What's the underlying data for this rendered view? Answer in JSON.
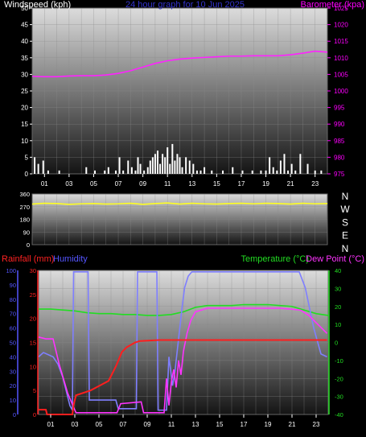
{
  "colors": {
    "wind": "#ffffff",
    "barometer": "#ff22ff",
    "direction": "#ffff22",
    "rain": "#ff1e1e",
    "humidity": "#7f7fff",
    "temperature": "#22dd22",
    "dewpoint": "#ff33ff",
    "axis_white": "#ffffff",
    "axis_magenta": "#ff00ff",
    "axis_red": "#ff2222",
    "axis_blue": "#5555ff",
    "axis_green": "#22dd22",
    "title": "#3333cc"
  },
  "header": {
    "title": "24 hour graph for 10 Jun 2025"
  },
  "chart_data": [
    {
      "type": "bar+line",
      "title": "24 hour graph for 10 Jun 2025",
      "ylabel_left": "Windspeed (kph)",
      "ylabel_right": "Barometer (kpa)",
      "ylim_left": [
        0,
        50
      ],
      "ylim_right": [
        975,
        1025
      ],
      "yticks_left": [
        "0",
        "5",
        "10",
        "15",
        "20",
        "25",
        "30",
        "35",
        "40",
        "45",
        "50"
      ],
      "yticks_right": [
        "975",
        "980",
        "985",
        "990",
        "995",
        "1000",
        "1005",
        "1010",
        "1015",
        "1020",
        "1025"
      ],
      "xticks": [
        "01",
        "03",
        "05",
        "07",
        "09",
        "11",
        "13",
        "15",
        "17",
        "19",
        "21",
        "23"
      ],
      "x_range_hours": [
        0,
        24
      ],
      "grid": true,
      "series": [
        {
          "kind": "bar",
          "axis": "left",
          "x": [
            0.2,
            0.5,
            0.9,
            1.3,
            2.2,
            4.4,
            5.1,
            5.9,
            6.2,
            6.8,
            7.1,
            7.4,
            7.8,
            8.1,
            8.4,
            8.6,
            8.8,
            9.1,
            9.4,
            9.6,
            9.8,
            10.0,
            10.2,
            10.4,
            10.6,
            10.8,
            11.0,
            11.2,
            11.4,
            11.6,
            11.8,
            12.0,
            12.2,
            12.5,
            12.8,
            13.1,
            13.4,
            13.7,
            14.0,
            14.6,
            15.5,
            16.3,
            17.1,
            17.9,
            18.6,
            19.0,
            19.3,
            19.6,
            19.9,
            20.2,
            20.5,
            20.8,
            21.1,
            21.4,
            21.8,
            22.4,
            23.0,
            23.5
          ],
          "values": [
            5,
            3,
            4,
            1,
            1,
            2,
            1,
            1,
            2,
            1,
            5,
            1,
            4,
            2,
            1,
            5,
            3,
            1,
            2,
            4,
            5,
            6,
            7,
            3,
            6,
            5,
            8,
            3,
            9,
            4,
            6,
            5,
            2,
            5,
            4,
            3,
            1,
            1,
            2,
            1,
            1,
            2,
            1,
            1,
            1,
            1,
            5,
            2,
            1,
            4,
            6,
            1,
            3,
            1,
            6,
            3,
            1,
            1
          ]
        },
        {
          "kind": "line",
          "axis": "right",
          "name": "barometer",
          "x": [
            0,
            1,
            2,
            3,
            4,
            5,
            6,
            7,
            8,
            9,
            10,
            11,
            12,
            13,
            14,
            15,
            16,
            17,
            18,
            19,
            20,
            21,
            22,
            23,
            24
          ],
          "values": [
            1004.4,
            1004.3,
            1004.3,
            1004.5,
            1004.6,
            1004.6,
            1004.8,
            1005.3,
            1006.1,
            1007.2,
            1008.3,
            1009.1,
            1009.6,
            1009.9,
            1010.1,
            1010.3,
            1010.5,
            1010.5,
            1010.6,
            1010.6,
            1010.6,
            1010.9,
            1011.4,
            1012.0,
            1011.7
          ]
        }
      ]
    },
    {
      "type": "line",
      "ylabel_right": "N W S E N",
      "ylim": [
        0,
        360
      ],
      "yticks_left": [
        "0",
        "90",
        "180",
        "270",
        "360"
      ],
      "yticks_right": [
        "N",
        "W",
        "S",
        "E",
        "N"
      ],
      "x_range_hours": [
        0,
        24
      ],
      "grid": true,
      "series": [
        {
          "name": "wind direction",
          "x": [
            0,
            1,
            2,
            3,
            4,
            5,
            6,
            7,
            8,
            9,
            10,
            11,
            12,
            13,
            14,
            15,
            16,
            17,
            18,
            19,
            20,
            21,
            22,
            23,
            24
          ],
          "values": [
            288,
            294,
            292,
            286,
            290,
            292,
            288,
            290,
            294,
            286,
            292,
            296,
            288,
            294,
            290,
            288,
            292,
            294,
            290,
            294,
            292,
            288,
            294,
            290,
            292
          ]
        }
      ]
    },
    {
      "type": "line",
      "ylabel_left_1": "Rainfall (mm)",
      "ylabel_left_2": "Humidity",
      "ylabel_right_1": "Temperature (°C)",
      "ylabel_right_2": "Dew Point (°C)",
      "xticks": [
        "01",
        "03",
        "05",
        "07",
        "09",
        "11",
        "13",
        "15",
        "17",
        "19",
        "21",
        "23"
      ],
      "x_range_hours": [
        0,
        24
      ],
      "rain_axis": {
        "ylim": [
          0,
          30
        ],
        "ticks": [
          "0",
          "5",
          "10",
          "15",
          "20",
          "25",
          "30"
        ]
      },
      "humidity_axis": {
        "ylim": [
          0,
          100
        ],
        "ticks": [
          "0",
          "10",
          "20",
          "30",
          "40",
          "50",
          "60",
          "70",
          "80",
          "90",
          "100"
        ]
      },
      "temp_axis": {
        "ylim": [
          -40,
          40
        ],
        "ticks": [
          "-40",
          "-30",
          "-20",
          "-10",
          "0",
          "10",
          "20",
          "30",
          "40"
        ]
      },
      "grid": true,
      "series": [
        {
          "name": "Rainfall",
          "axis": "rain",
          "x": [
            0,
            0.6,
            0.7,
            2.8,
            2.9,
            3.1,
            4.3,
            5.8,
            6.4,
            6.9,
            7.3,
            8.0,
            8.4,
            10.0,
            12.0,
            16.0,
            20.0,
            23.9
          ],
          "values": [
            1,
            1,
            0,
            0,
            2,
            4,
            5,
            7,
            10,
            13,
            14,
            15,
            15.3,
            15.5,
            15.5,
            15.5,
            15.5,
            15.5
          ]
        },
        {
          "name": "Humidity",
          "axis": "humidity",
          "x": [
            0,
            0.4,
            1.2,
            1.6,
            2.0,
            2.6,
            2.8,
            2.9,
            4.1,
            4.2,
            6.4,
            6.6,
            8.1,
            8.2,
            9.8,
            9.9,
            10.6,
            10.8,
            11.1,
            11.3,
            11.5,
            11.7,
            11.9,
            12.1,
            12.4,
            12.7,
            13.0,
            14.0,
            16.0,
            20.0,
            21.6,
            22.1,
            22.8,
            23.4,
            23.9
          ],
          "values": [
            40,
            43,
            40,
            35,
            26,
            6,
            3,
            99,
            99,
            10,
            10,
            4,
            4,
            99,
            99,
            3,
            3,
            40,
            20,
            30,
            45,
            60,
            75,
            88,
            96,
            99,
            99,
            99,
            99,
            99,
            99,
            88,
            60,
            42,
            40
          ]
        },
        {
          "name": "Temperature",
          "axis": "temp",
          "x": [
            0,
            1,
            2,
            3,
            4,
            5,
            6,
            7,
            8,
            9,
            10,
            11,
            12,
            13,
            14,
            15,
            16,
            17,
            18,
            19,
            20,
            21,
            22,
            23,
            24
          ],
          "values": [
            18.5,
            18.5,
            18,
            17.5,
            16.5,
            16,
            16,
            15.5,
            15.5,
            15,
            15,
            15.5,
            17,
            19.5,
            20.5,
            20.5,
            20.5,
            21,
            21,
            21,
            20.5,
            20,
            18,
            16,
            15
          ]
        },
        {
          "name": "Dew Point",
          "axis": "temp",
          "x": [
            0,
            0.6,
            1.2,
            1.7,
            2.4,
            2.9,
            3.1,
            6.5,
            6.8,
            8.5,
            8.7,
            10.4,
            10.6,
            10.8,
            11.0,
            11.2,
            11.4,
            11.6,
            11.8,
            12.0,
            12.3,
            12.6,
            13.0,
            14.0,
            16.0,
            20.0,
            21.7,
            22.4,
            23.0,
            23.6,
            23.9
          ],
          "values": [
            3,
            2,
            2,
            -12,
            -28,
            -36,
            -39,
            -39,
            -34,
            -33,
            -39,
            -39,
            -20,
            -35,
            -22,
            -15,
            -25,
            -10,
            -18,
            -5,
            5,
            12,
            17,
            19,
            19,
            19,
            18,
            15,
            11,
            7,
            5
          ]
        }
      ]
    }
  ]
}
